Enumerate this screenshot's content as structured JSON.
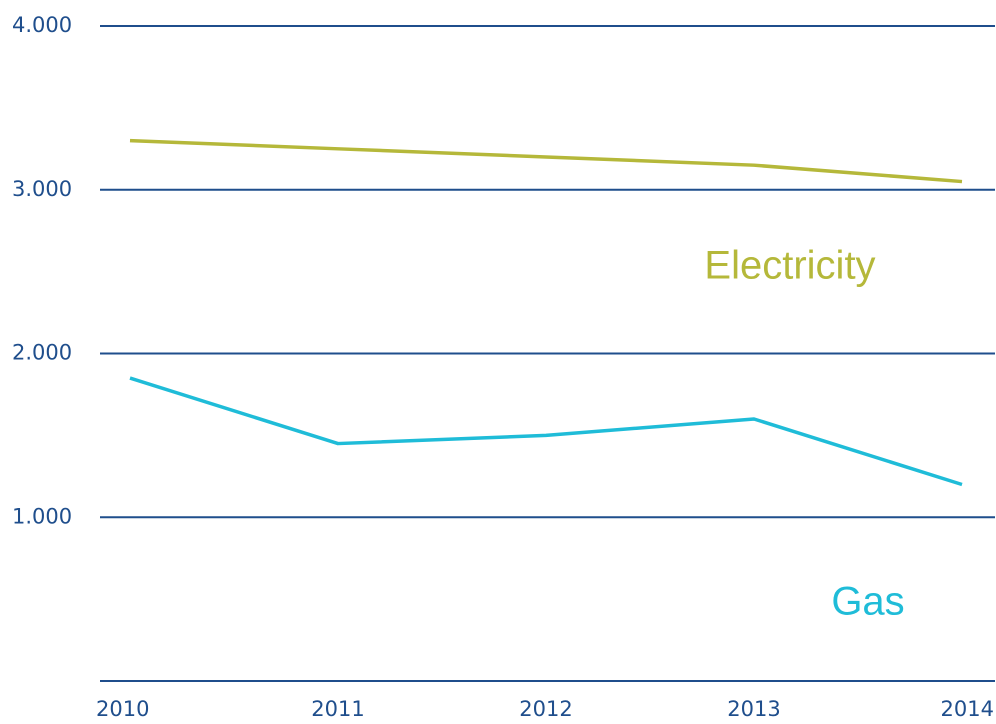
{
  "chart_data": {
    "type": "line",
    "categories": [
      "2010",
      "2011",
      "2012",
      "2013",
      "2014"
    ],
    "series": [
      {
        "name": "Electricity",
        "color": "#b5b83a",
        "values": [
          3300,
          3250,
          3200,
          3150,
          3050
        ]
      },
      {
        "name": "Gas",
        "color": "#1fbcd8",
        "values": [
          1850,
          1450,
          1500,
          1600,
          1200
        ]
      }
    ],
    "ylim": [
      0,
      4000
    ],
    "yticks": [
      {
        "value": 1000,
        "label": "1.000"
      },
      {
        "value": 2000,
        "label": "2.000"
      },
      {
        "value": 3000,
        "label": "3.000"
      },
      {
        "value": 4000,
        "label": "4.000"
      }
    ],
    "grid": true,
    "grid_color": "#1f4e8c"
  }
}
